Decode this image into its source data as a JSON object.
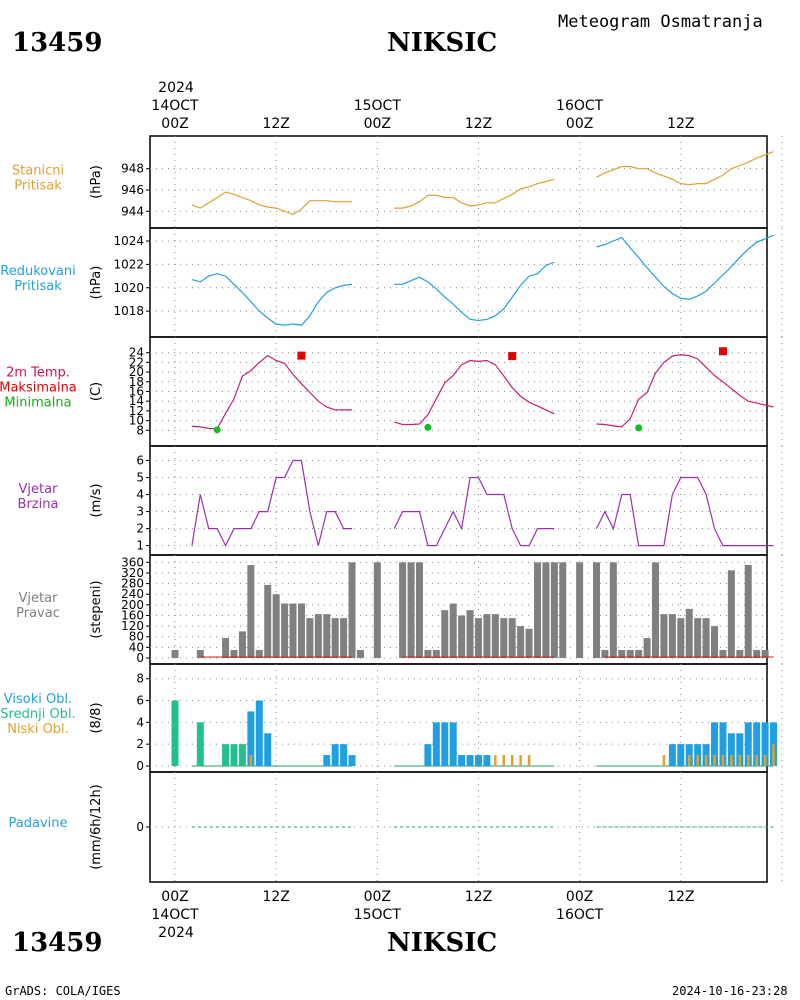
{
  "header": {
    "station_id": "13459",
    "station_name": "NIKSIC",
    "title": "Meteogram Osmatranja",
    "year": "2024",
    "dates": [
      "14OCT",
      "15OCT",
      "16OCT"
    ],
    "times": [
      "00Z",
      "12Z",
      "00Z",
      "12Z",
      "00Z",
      "12Z"
    ]
  },
  "footer": {
    "station_id": "13459",
    "station_name": "NIKSIC",
    "year": "2024",
    "credit": "GrADS: COLA/IGES",
    "timestamp": "2024-10-16-23:28"
  },
  "chart_data": [
    {
      "type": "line",
      "label_lines": [
        "Stanicni",
        "Pritisak"
      ],
      "unit": "(hPa)",
      "color": "#e0a030",
      "ylim": [
        943,
        950.5
      ],
      "ticks": [
        944,
        946,
        948
      ],
      "series": [
        {
          "x": [
            2,
            3,
            4,
            5,
            6,
            7,
            8,
            9,
            10,
            11,
            12,
            13,
            14,
            15,
            16,
            17,
            18,
            19,
            20,
            21
          ],
          "y": [
            944.6,
            944.3,
            944.8,
            945.3,
            945.8,
            945.6,
            945.3,
            945.0,
            944.6,
            944.4,
            944.3,
            944.0,
            943.7,
            944.2,
            945.0,
            945.0,
            945.0,
            944.9,
            944.9,
            944.9
          ]
        },
        {
          "x": [
            26,
            27,
            28,
            29,
            30,
            31,
            32,
            33,
            34,
            35,
            36,
            37,
            38,
            39,
            40,
            41,
            42,
            43,
            44,
            45
          ],
          "y": [
            944.3,
            944.3,
            944.5,
            944.9,
            945.5,
            945.5,
            945.3,
            945.3,
            944.8,
            944.5,
            944.6,
            944.8,
            944.8,
            945.2,
            945.6,
            946.1,
            946.3,
            946.6,
            946.8,
            947.0
          ]
        },
        {
          "x": [
            50,
            51,
            52,
            53,
            54,
            55,
            56,
            57,
            58,
            59,
            60,
            61,
            62,
            63,
            64,
            65,
            66,
            67,
            68,
            69,
            70,
            71
          ],
          "y": [
            947.2,
            947.6,
            947.9,
            948.2,
            948.2,
            948.0,
            948.0,
            947.6,
            947.3,
            947.0,
            946.6,
            946.5,
            946.6,
            946.6,
            947.0,
            947.4,
            948.0,
            948.3,
            948.6,
            949.0,
            949.3,
            949.6
          ]
        }
      ]
    },
    {
      "type": "line",
      "label_lines": [
        "Redukovani",
        "Pritisak"
      ],
      "unit": "(hPa)",
      "color": "#22a0d8",
      "ylim": [
        1016.3,
        1024.6
      ],
      "ticks": [
        1018,
        1020,
        1022,
        1024
      ],
      "series": [
        {
          "x": [
            2,
            3,
            4,
            5,
            6,
            7,
            8,
            9,
            10,
            11,
            12,
            13,
            14,
            15,
            16,
            17,
            18,
            19,
            20,
            21
          ],
          "y": [
            1020.7,
            1020.5,
            1021.0,
            1021.2,
            1021.0,
            1020.3,
            1019.6,
            1018.8,
            1018.0,
            1017.4,
            1016.9,
            1016.8,
            1016.9,
            1016.8,
            1017.6,
            1018.8,
            1019.6,
            1020.0,
            1020.2,
            1020.3
          ]
        },
        {
          "x": [
            26,
            27,
            28,
            29,
            30,
            31,
            32,
            33,
            34,
            35,
            36,
            37,
            38,
            39,
            40,
            41,
            42,
            43,
            44,
            45
          ],
          "y": [
            1020.3,
            1020.3,
            1020.6,
            1020.9,
            1020.5,
            1019.9,
            1019.2,
            1018.6,
            1017.9,
            1017.3,
            1017.2,
            1017.3,
            1017.6,
            1018.2,
            1019.2,
            1020.2,
            1021.0,
            1021.2,
            1021.9,
            1022.2
          ]
        },
        {
          "x": [
            50,
            51,
            52,
            53,
            54,
            55,
            56,
            57,
            58,
            59,
            60,
            61,
            62,
            63,
            64,
            65,
            66,
            67,
            68,
            69,
            70,
            71
          ],
          "y": [
            1023.5,
            1023.7,
            1024.0,
            1024.3,
            1023.4,
            1022.6,
            1021.7,
            1020.9,
            1020.1,
            1019.5,
            1019.1,
            1019.0,
            1019.3,
            1019.7,
            1020.4,
            1021.1,
            1021.8,
            1022.6,
            1023.3,
            1023.9,
            1024.2,
            1024.5
          ]
        }
      ]
    },
    {
      "type": "line",
      "label_lines": [
        "2m Temp.",
        "Maksimalna",
        "Minimalna"
      ],
      "label_colors": [
        "#d0105a",
        "#e00000",
        "#10b010"
      ],
      "unit": "(C)",
      "color": "#c0207a",
      "ylim": [
        6,
        26
      ],
      "ticks": [
        8,
        10,
        12,
        14,
        16,
        18,
        20,
        22,
        24
      ],
      "series": [
        {
          "x": [
            2,
            3,
            4,
            5,
            6,
            7,
            8,
            9,
            10,
            11,
            12,
            13,
            14,
            15,
            16,
            17,
            18,
            19,
            20,
            21
          ],
          "y": [
            8.8,
            8.7,
            8.4,
            8.3,
            11.5,
            14.5,
            19.2,
            20.3,
            22.0,
            23.4,
            22.4,
            21.8,
            19.5,
            17.6,
            15.8,
            14.0,
            12.8,
            12.2,
            12.2,
            12.2
          ]
        },
        {
          "x": [
            26,
            27,
            28,
            29,
            30,
            31,
            32,
            33,
            34,
            35,
            36,
            37,
            38,
            39,
            40,
            41,
            42,
            43,
            44,
            45
          ],
          "y": [
            9.7,
            9.2,
            9.2,
            9.3,
            11.2,
            14.5,
            17.8,
            19.3,
            21.5,
            22.4,
            22.2,
            22.4,
            21.5,
            19.2,
            16.8,
            15.0,
            13.8,
            13.0,
            12.2,
            11.4
          ]
        },
        {
          "x": [
            50,
            51,
            52,
            53,
            54,
            55,
            56,
            57,
            58,
            59,
            60,
            61,
            62,
            63,
            64,
            65,
            66,
            67,
            68,
            69,
            70,
            71
          ],
          "y": [
            9.3,
            9.2,
            8.9,
            8.7,
            10.4,
            14.4,
            15.8,
            19.8,
            22.0,
            23.3,
            23.6,
            23.4,
            22.7,
            21.0,
            19.3,
            18.0,
            16.6,
            15.2,
            14.0,
            13.6,
            13.2,
            12.8
          ]
        }
      ],
      "max_points": [
        {
          "x": 15,
          "y": 23.4
        },
        {
          "x": 40,
          "y": 23.3
        },
        {
          "x": 65,
          "y": 24.3
        }
      ],
      "min_points": [
        {
          "x": 5,
          "y": 8.1
        },
        {
          "x": 30,
          "y": 8.6
        },
        {
          "x": 55,
          "y": 8.5
        }
      ],
      "max_color": "#e00000",
      "min_color": "#10c020"
    },
    {
      "type": "line",
      "label_lines": [
        "Vjetar",
        "Brzina"
      ],
      "unit": "(m/s)",
      "color": "#9a30b0",
      "ylim": [
        0.8,
        6.5
      ],
      "ticks": [
        1,
        2,
        3,
        4,
        5,
        6
      ],
      "series": [
        {
          "x": [
            2,
            3,
            4,
            5,
            6,
            7,
            8,
            9,
            10,
            11,
            12,
            13,
            14,
            15,
            16,
            17,
            18,
            19,
            20,
            21
          ],
          "y": [
            1,
            4,
            2,
            2,
            1,
            2,
            2,
            2,
            3,
            3,
            5,
            5,
            6,
            6,
            3,
            1,
            3,
            3,
            2,
            2
          ]
        },
        {
          "x": [
            26,
            27,
            28,
            29,
            30,
            31,
            32,
            33,
            34,
            35,
            36,
            37,
            38,
            39,
            40,
            41,
            42,
            43,
            44,
            45
          ],
          "y": [
            2,
            3,
            3,
            3,
            1,
            1,
            2,
            3,
            2,
            5,
            5,
            4,
            4,
            4,
            2,
            1,
            1,
            2,
            2,
            2
          ]
        },
        {
          "x": [
            50,
            51,
            52,
            53,
            54,
            55,
            56,
            57,
            58,
            59,
            60,
            61,
            62,
            63,
            64,
            65,
            66,
            67,
            68,
            69,
            70,
            71
          ],
          "y": [
            2,
            3,
            2,
            4,
            4,
            1,
            1,
            1,
            1,
            4,
            5,
            5,
            5,
            4,
            2,
            1,
            1,
            1,
            1,
            1,
            1,
            1
          ]
        }
      ]
    },
    {
      "type": "bar",
      "label_lines": [
        "Vjetar",
        "Pravac"
      ],
      "unit": "(stepeni)",
      "color": "#808080",
      "baseline_color": "#cc2020",
      "ylim": [
        0,
        365
      ],
      "ticks": [
        0,
        40,
        80,
        120,
        160,
        200,
        240,
        280,
        320,
        360
      ],
      "x": [
        0,
        3,
        6,
        7,
        8,
        9,
        10,
        11,
        12,
        13,
        14,
        15,
        16,
        17,
        18,
        19,
        20,
        21,
        22,
        24,
        27,
        28,
        29,
        30,
        31,
        32,
        33,
        34,
        35,
        36,
        37,
        38,
        39,
        40,
        41,
        42,
        43,
        44,
        45,
        46,
        48,
        50,
        51,
        52,
        53,
        54,
        55,
        56,
        57,
        58,
        59,
        60,
        61,
        62,
        63,
        64,
        65,
        66,
        67,
        68,
        69,
        70
      ],
      "values": [
        30,
        30,
        75,
        30,
        100,
        350,
        30,
        275,
        240,
        205,
        205,
        205,
        150,
        165,
        165,
        150,
        150,
        360,
        30,
        360,
        360,
        360,
        360,
        30,
        30,
        180,
        205,
        160,
        180,
        150,
        165,
        165,
        150,
        150,
        120,
        110,
        360,
        360,
        360,
        360,
        360,
        360,
        30,
        360,
        30,
        30,
        30,
        75,
        360,
        165,
        165,
        150,
        185,
        150,
        150,
        120,
        30,
        330,
        30,
        350,
        30,
        30
      ]
    },
    {
      "type": "bar",
      "label_lines": [
        "Visoki Obl.",
        "Srednji Obl.",
        "Niski Obl."
      ],
      "label_colors": [
        "#22a0d8",
        "#20c090",
        "#e0a030"
      ],
      "unit": "(8/8)",
      "ylim": [
        0,
        8.8
      ],
      "ticks": [
        0,
        2,
        4,
        6,
        8
      ],
      "series": [
        {
          "name": "Visoki Obl.",
          "color": "#20a0e0",
          "x": [
            6,
            7,
            8,
            9,
            10,
            11,
            12,
            13,
            14,
            15,
            16,
            17,
            18,
            19,
            20,
            21,
            22,
            30,
            31,
            32,
            33,
            34,
            35,
            36,
            37,
            38,
            39,
            40,
            41,
            42,
            43,
            44,
            45,
            55,
            56,
            57,
            58,
            59,
            60,
            61,
            62,
            63,
            64,
            65,
            66,
            67,
            68,
            69,
            70,
            71
          ],
          "values": [
            0,
            0,
            0,
            5,
            6,
            3,
            0,
            0,
            0,
            0,
            0,
            0,
            1,
            2,
            2,
            1,
            0,
            2,
            4,
            4,
            4,
            1,
            1,
            1,
            1,
            0,
            0,
            0,
            0,
            0,
            0,
            0,
            0,
            0,
            0,
            0,
            0,
            2,
            2,
            2,
            2,
            2,
            4,
            4,
            3,
            3,
            4,
            4,
            4,
            4
          ]
        },
        {
          "name": "Srednji Obl.",
          "color": "#20c090",
          "x": [
            0,
            3,
            6,
            7,
            8
          ],
          "values": [
            6,
            4,
            2,
            2,
            2
          ]
        },
        {
          "name": "Niski Obl.",
          "color": "#e0a030",
          "x": [
            9,
            38,
            39,
            40,
            41,
            42,
            58,
            61,
            62,
            63,
            64,
            65,
            66,
            67,
            68,
            69,
            70,
            71
          ],
          "values": [
            1,
            1,
            1,
            1,
            1,
            1,
            1,
            1,
            1,
            1,
            1,
            1,
            1,
            1,
            1,
            1,
            1,
            2
          ]
        }
      ]
    },
    {
      "type": "bar",
      "label_lines": [
        "Padavine"
      ],
      "label_colors": [
        "#22a0d8"
      ],
      "unit": "(mm/6h/12h)",
      "ylim": [
        -0.7,
        0.7
      ],
      "ticks": [
        0
      ],
      "series": [
        {
          "name": "Padavine",
          "color": "#22a0d8",
          "x": [
            3,
            6,
            30,
            54
          ],
          "values": [
            0,
            0,
            0,
            0
          ]
        }
      ]
    }
  ]
}
